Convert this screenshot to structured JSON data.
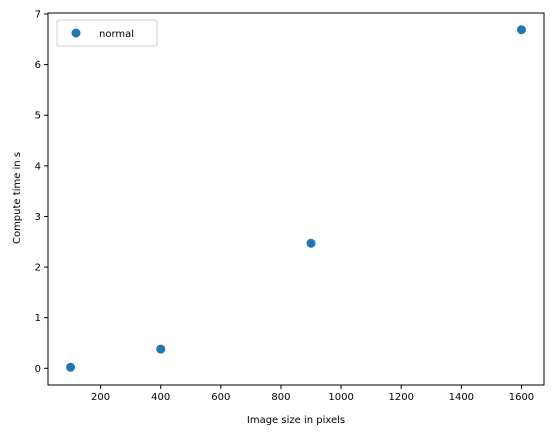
{
  "chart_data": {
    "type": "scatter",
    "xlabel": "Image size in pixels",
    "ylabel": "Compute time in s",
    "xlim": [
      25,
      1675
    ],
    "ylim": [
      -0.33,
      7.02
    ],
    "xticks": [
      200,
      400,
      600,
      800,
      1000,
      1200,
      1400,
      1600
    ],
    "yticks": [
      0,
      1,
      2,
      3,
      4,
      5,
      6,
      7
    ],
    "grid": false,
    "legend_position": "top-left",
    "series": [
      {
        "name": "normal",
        "color": "#1f77b4",
        "x": [
          100,
          400,
          900,
          1600
        ],
        "y": [
          0.02,
          0.38,
          2.47,
          6.69
        ]
      }
    ]
  }
}
